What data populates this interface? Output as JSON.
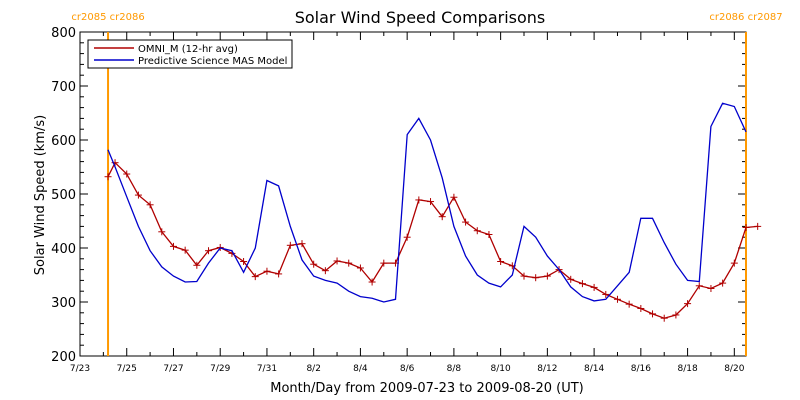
{
  "chart_data": {
    "type": "line",
    "title": "Solar Wind Speed Comparisons",
    "xlabel": "Month/Day from 2009-07-23 to 2009-08-20 (UT)",
    "ylabel": "Solar Wind Speed (km/s)",
    "xlim": [
      0,
      28.5
    ],
    "ylim": [
      200,
      800
    ],
    "yticks": [
      200,
      300,
      400,
      500,
      600,
      700,
      800
    ],
    "xtick_values": [
      0,
      2,
      4,
      6,
      8,
      10,
      12,
      14,
      16,
      18,
      20,
      22,
      24,
      26,
      28
    ],
    "xtick_labels": [
      "7/23",
      "7/25",
      "7/27",
      "7/29",
      "7/31",
      "8/2",
      "8/4",
      "8/6",
      "8/8",
      "8/10",
      "8/12",
      "8/14",
      "8/16",
      "8/18",
      "8/20"
    ],
    "legend": {
      "placement": "top-left",
      "entries": [
        "OMNI_M (12-hr avg)",
        "Predictive Science MAS Model"
      ]
    },
    "colors": {
      "omni": "#b00000",
      "model": "#0000cc",
      "rotation": "#ff9900",
      "axes": "#000000"
    },
    "rotation_markers": [
      {
        "x": 1.2,
        "left_label": "cr2085",
        "right_label": "cr2086"
      },
      {
        "x": 28.5,
        "left_label": "cr2086",
        "right_label": "cr2087"
      }
    ],
    "series": [
      {
        "name": "OMNI_M (12-hr avg)",
        "x": [
          1.2,
          1.5,
          2.0,
          2.5,
          3.0,
          3.5,
          4.0,
          4.5,
          5.0,
          5.5,
          6.0,
          6.5,
          7.0,
          7.5,
          8.0,
          8.5,
          9.0,
          9.5,
          10.0,
          10.5,
          11.0,
          11.5,
          12.0,
          12.5,
          13.0,
          13.5,
          14.0,
          14.5,
          15.0,
          15.5,
          16.0,
          16.5,
          17.0,
          17.5,
          18.0,
          18.5,
          19.0,
          19.5,
          20.0,
          20.5,
          21.0,
          21.5,
          22.0,
          22.5,
          23.0,
          23.5,
          24.0,
          24.5,
          25.0,
          25.5,
          26.0,
          26.5,
          27.0,
          27.5,
          28.0,
          28.5,
          29.0
        ],
        "y": [
          532,
          558,
          537,
          498,
          480,
          430,
          403,
          396,
          368,
          395,
          401,
          390,
          375,
          347,
          357,
          352,
          405,
          408,
          370,
          358,
          376,
          372,
          363,
          337,
          372,
          372,
          420,
          489,
          486,
          458,
          494,
          448,
          432,
          425,
          375,
          367,
          348,
          345,
          348,
          360,
          342,
          334,
          327,
          314,
          305,
          296,
          288,
          278,
          270,
          276,
          297,
          330,
          325,
          335,
          372,
          438,
          440
        ]
      },
      {
        "name": "Predictive Science MAS Model",
        "x": [
          1.2,
          1.5,
          2.0,
          2.5,
          3.0,
          3.5,
          4.0,
          4.5,
          5.0,
          5.5,
          6.0,
          6.5,
          7.0,
          7.5,
          8.0,
          8.5,
          9.0,
          9.5,
          10.0,
          10.5,
          11.0,
          11.5,
          12.0,
          12.5,
          13.0,
          13.5,
          14.0,
          14.5,
          15.0,
          15.5,
          16.0,
          16.5,
          17.0,
          17.5,
          18.0,
          18.5,
          19.0,
          19.5,
          20.0,
          20.5,
          21.0,
          21.5,
          22.0,
          22.5,
          23.0,
          23.5,
          24.0,
          24.5,
          25.0,
          25.5,
          26.0,
          26.5,
          27.0,
          27.5,
          28.0,
          28.5
        ],
        "y": [
          582,
          550,
          495,
          440,
          395,
          365,
          348,
          337,
          338,
          372,
          400,
          395,
          355,
          400,
          525,
          515,
          440,
          378,
          348,
          340,
          335,
          320,
          310,
          307,
          300,
          305,
          610,
          640,
          600,
          530,
          440,
          385,
          350,
          335,
          328,
          350,
          440,
          420,
          385,
          360,
          328,
          310,
          302,
          305,
          330,
          355,
          455,
          455,
          410,
          370,
          340,
          338,
          625,
          668,
          662,
          615
        ]
      }
    ]
  }
}
